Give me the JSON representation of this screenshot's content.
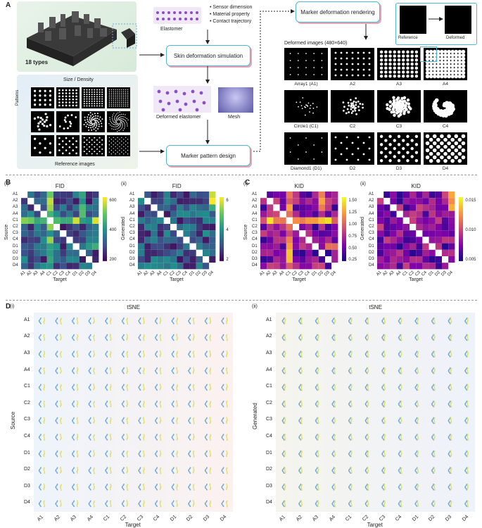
{
  "panel_a": {
    "label": "A",
    "types_label": "18 types",
    "elastomer_label": "Elastomer",
    "bullets": [
      "Sensor dimension",
      "Material property",
      "Contact trajectory"
    ],
    "skin_box": "Skin deformation simulation",
    "deformed_label": "Deformed elastomer",
    "mesh_label": "Mesh",
    "size_density": "Size / Density",
    "patterns": "Patterns",
    "reference_images": "Reference images",
    "pattern_box": "Marker pattern design",
    "render_box": "Marker deformation rendering",
    "reference": "Reference",
    "deformed": "Deformed",
    "deformed_images": "Deformed images (480×640)",
    "grid_captions": [
      [
        "Array1 (A1)",
        "A2",
        "A3",
        "A4"
      ],
      [
        "Circle1 (C1)",
        "C2",
        "C3",
        "C4"
      ],
      [
        "Diamond1 (D1)",
        "D2",
        "D3",
        "D4"
      ]
    ]
  },
  "panel_b": {
    "label": "B",
    "sub_i": "(i)",
    "sub_ii": "(ii)",
    "title_i": "FID",
    "title_ii": "FID",
    "ylabel_i": "Source",
    "ylabel_ii": "Generated",
    "xlabel": "Target",
    "cbar_i": [
      "600",
      "400",
      "200"
    ],
    "cbar_ii": [
      "6",
      "4",
      "2"
    ]
  },
  "panel_c": {
    "label": "C",
    "sub_i": "(i)",
    "sub_ii": "(ii)",
    "title_i": "KID",
    "title_ii": "KID",
    "ylabel_i": "Source",
    "ylabel_ii": "Generated",
    "xlabel": "Target",
    "cbar_i": [
      "1.50",
      "1.25",
      "1.00",
      "0.75",
      "0.50",
      "0.25"
    ],
    "cbar_ii": [
      "0.015",
      "0.010",
      "0.005"
    ]
  },
  "panel_d": {
    "label": "D",
    "sub_i": "(i)",
    "sub_ii": "(ii)",
    "title_i": "tSNE",
    "title_ii": "tSNE",
    "ylabel_i": "Source",
    "ylabel_ii": "Generated",
    "xlabel": "Target"
  },
  "labels": [
    "A1",
    "A2",
    "A3",
    "A4",
    "C1",
    "C2",
    "C3",
    "C4",
    "D1",
    "D2",
    "D3",
    "D4"
  ],
  "colors": {
    "accent_box": "#4fb6d6",
    "box_shadow": "#e6a6b8",
    "tsne_blue": "#6aa7dc",
    "tsne_yellow": "#e1df6a"
  }
}
